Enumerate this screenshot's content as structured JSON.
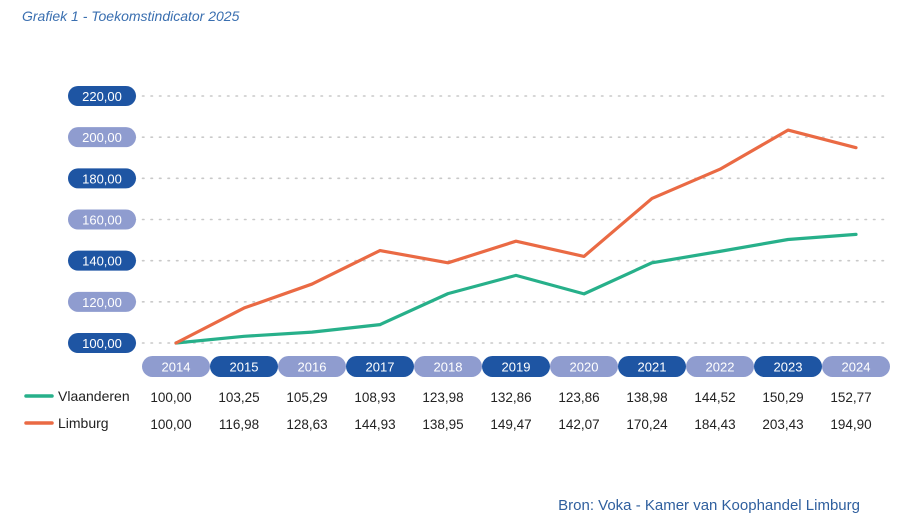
{
  "chart_data": {
    "type": "line",
    "title": "Grafiek 1 - Toekomstindicator 2025",
    "categories": [
      "2014",
      "2015",
      "2016",
      "2017",
      "2018",
      "2019",
      "2020",
      "2021",
      "2022",
      "2023",
      "2024"
    ],
    "y_tick_labels": [
      "220,00",
      "200,00",
      "180,00",
      "160,00",
      "140,00",
      "120,00",
      "100,00"
    ],
    "ylim": [
      100,
      220
    ],
    "grid": "dotted horizontal",
    "series": [
      {
        "name": "Vlaanderen",
        "color": "#27b08a",
        "values": [
          100.0,
          103.25,
          105.29,
          108.93,
          123.98,
          132.86,
          123.86,
          138.98,
          144.52,
          150.29,
          152.77
        ],
        "labels": [
          "100,00",
          "103,25",
          "105,29",
          "108,93",
          "123,98",
          "132,86",
          "123,86",
          "138,98",
          "144,52",
          "150,29",
          "152,77"
        ]
      },
      {
        "name": "Limburg",
        "color": "#ea6a44",
        "values": [
          100.0,
          116.98,
          128.63,
          144.93,
          138.95,
          149.47,
          142.07,
          170.24,
          184.43,
          203.43,
          194.9
        ],
        "labels": [
          "100,00",
          "116,98",
          "128,63",
          "144,93",
          "138,95",
          "149,47",
          "142,07",
          "170,24",
          "184,43",
          "203,43",
          "194,90"
        ]
      }
    ],
    "source": "Bron: Voka - Kamer van Koophandel Limburg"
  }
}
